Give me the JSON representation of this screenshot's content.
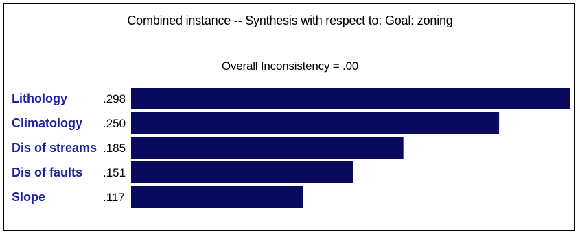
{
  "title": "Combined instance -- Synthesis with respect to: Goal: zoning",
  "subtitle": "Overall Inconsistency = .00",
  "colors": {
    "bar": "#0a0a5e",
    "category_text": "#1f1f9f"
  },
  "chart_data": {
    "type": "bar",
    "orientation": "horizontal",
    "title": "Combined instance -- Synthesis with respect to: Goal: zoning",
    "subtitle": "Overall Inconsistency = .00",
    "categories": [
      "Lithology",
      "Climatology",
      "Dis of streams",
      "Dis of faults",
      "Slope"
    ],
    "values": [
      0.298,
      0.25,
      0.185,
      0.151,
      0.117
    ],
    "value_labels": [
      ".298",
      ".250",
      ".185",
      ".151",
      ".117"
    ],
    "xlim": [
      0,
      0.298
    ],
    "grid": false,
    "legend": "none"
  }
}
